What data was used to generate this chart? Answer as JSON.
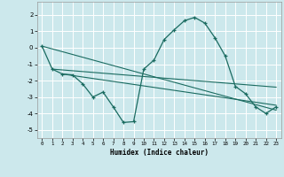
{
  "xlabel": "Humidex (Indice chaleur)",
  "xlim": [
    -0.5,
    23.5
  ],
  "ylim": [
    -5.5,
    2.8
  ],
  "yticks": [
    -5,
    -4,
    -3,
    -2,
    -1,
    0,
    1,
    2
  ],
  "xticks": [
    0,
    1,
    2,
    3,
    4,
    5,
    6,
    7,
    8,
    9,
    10,
    11,
    12,
    13,
    14,
    15,
    16,
    17,
    18,
    19,
    20,
    21,
    22,
    23
  ],
  "bg_color": "#cce8ec",
  "line_color": "#1a6b60",
  "grid_color": "#ffffff",
  "curve_x": [
    0,
    1,
    2,
    3,
    4,
    5,
    6,
    7,
    8,
    9,
    10,
    11,
    12,
    13,
    14,
    15,
    16,
    17,
    18,
    19,
    20,
    21,
    22,
    23
  ],
  "curve_y": [
    0.1,
    -1.3,
    -1.6,
    -1.65,
    -2.2,
    -3.0,
    -2.7,
    -3.6,
    -4.55,
    -4.5,
    -1.3,
    -0.75,
    0.5,
    1.1,
    1.65,
    1.85,
    1.5,
    0.6,
    -0.5,
    -2.35,
    -2.8,
    -3.6,
    -4.0,
    -3.6
  ],
  "line1_x": [
    0,
    23
  ],
  "line1_y": [
    0.1,
    -3.8
  ],
  "line2_x": [
    1,
    23
  ],
  "line2_y": [
    -1.3,
    -2.4
  ],
  "line3_x": [
    2,
    23
  ],
  "line3_y": [
    -1.6,
    -3.5
  ]
}
